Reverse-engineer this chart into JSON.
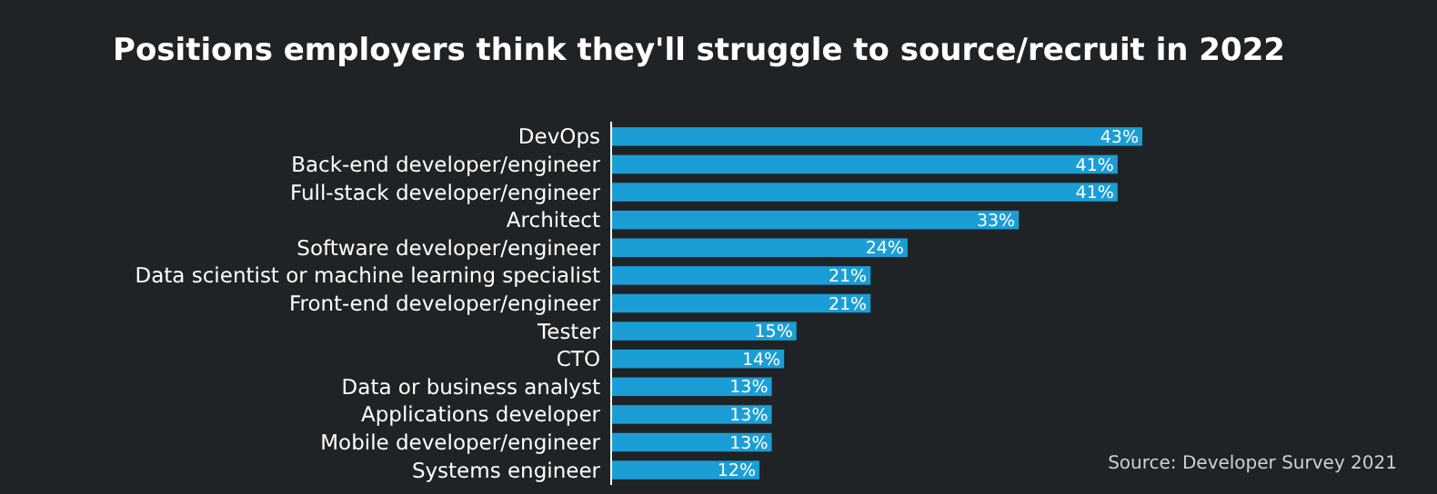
{
  "chart_data": {
    "type": "bar",
    "orientation": "horizontal",
    "title": "Positions employers think they'll struggle to source/recruit in 2022",
    "categories": [
      "DevOps",
      "Back-end developer/engineer",
      "Full-stack developer/engineer",
      "Architect",
      "Software developer/engineer",
      "Data scientist or machine learning specialist",
      "Front-end developer/engineer",
      "Tester",
      "CTO",
      "Data or business analyst",
      "Applications developer",
      "Mobile developer/engineer",
      "Systems engineer"
    ],
    "values": [
      43,
      41,
      41,
      33,
      24,
      21,
      21,
      15,
      14,
      13,
      13,
      13,
      12
    ],
    "value_labels": [
      "43%",
      "41%",
      "41%",
      "33%",
      "24%",
      "21%",
      "21%",
      "15%",
      "14%",
      "13%",
      "13%",
      "13%",
      "12%"
    ],
    "color": "#1b9ed6",
    "annotations": [
      "Source: Developer Survey 2021"
    ]
  }
}
